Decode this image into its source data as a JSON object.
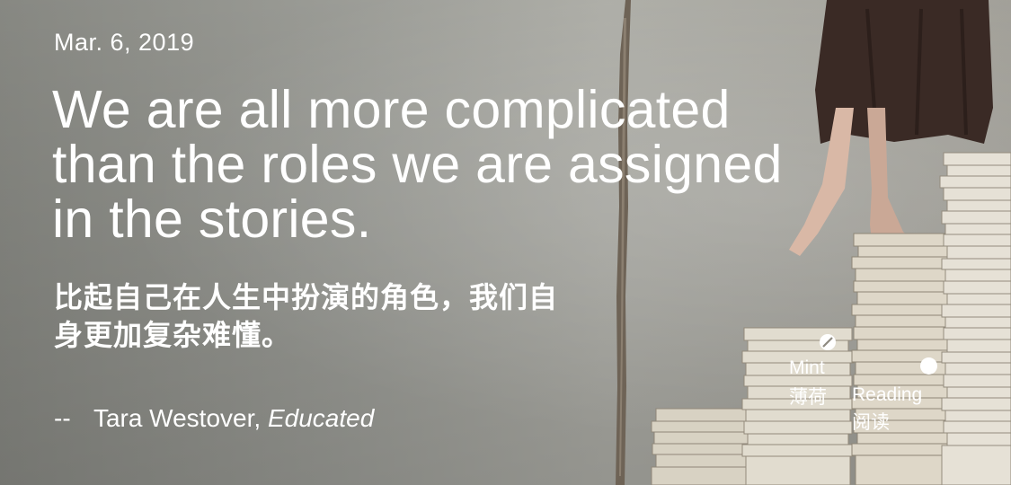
{
  "date": "Mar. 6, 2019",
  "quote": {
    "lines": [
      "We are all more complicated",
      "than the roles we are assigned",
      "in the stories."
    ],
    "translation_lines": [
      "比起自己在人生中扮演的角色，我们自",
      "身更加复杂难懂。"
    ]
  },
  "attribution": {
    "dash": "--",
    "author": "Tara Westover,",
    "book": "Educated"
  },
  "logo": {
    "word1": "Mint",
    "word1_cn": "薄荷",
    "word2": "Reading",
    "word2_cn": "阅读",
    "icons": [
      "slashed-circle-icon",
      "filled-circle-icon"
    ]
  },
  "colors": {
    "text": "#ffffff",
    "background": "#a4a59f"
  }
}
